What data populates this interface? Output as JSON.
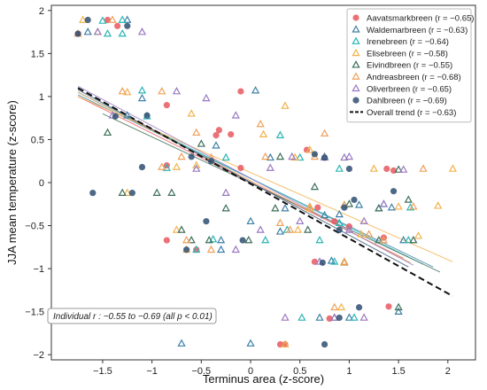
{
  "chart_data": {
    "type": "scatter",
    "title": "",
    "xlabel": "Terminus area  (z-score)",
    "ylabel": "JJA mean temperature  (z-score)",
    "xlim": [
      -2.02,
      2.28
    ],
    "ylim": [
      -2.06,
      2.06
    ],
    "xticks": [
      -1.5,
      -1,
      -0.5,
      0,
      0.5,
      1,
      1.5,
      2
    ],
    "xtick_labels": [
      "−1.5",
      "−1",
      "−0.5",
      "0",
      "0.5",
      "1",
      "1.5",
      "2"
    ],
    "yticks": [
      -2,
      -1.5,
      -1,
      -0.5,
      0,
      0.5,
      1,
      1.5,
      2
    ],
    "ytick_labels": [
      "−2",
      "−1.5",
      "−1",
      "−0.5",
      "0",
      "0.5",
      "1",
      "1.5",
      "2"
    ],
    "grid": false,
    "legend_position": "top-right",
    "annotation": "Individual r :  −0.55  to  −0.69   (all  p < 0.01)",
    "series": [
      {
        "name": "Aavatsmarkbreen",
        "r_label": "(r = −0.65)",
        "marker": "circle",
        "color": "#e8585f",
        "points": [
          [
            -1.75,
            1.73
          ],
          [
            -1.45,
            1.89
          ],
          [
            -1.35,
            1.82
          ],
          [
            -0.85,
            0.9
          ],
          [
            -0.85,
            0.2
          ],
          [
            -0.32,
            0.61
          ],
          [
            -0.35,
            0.55
          ],
          [
            -0.2,
            0.56
          ],
          [
            -0.1,
            0.17
          ],
          [
            -0.1,
            1.06
          ],
          [
            -0.85,
            -0.67
          ],
          [
            -0.55,
            -0.78
          ],
          [
            0.3,
            -1.88
          ],
          [
            0.35,
            -1.88
          ],
          [
            0.68,
            -0.29
          ],
          [
            0.65,
            -0.92
          ],
          [
            0.85,
            -0.45
          ],
          [
            1.0,
            -0.51
          ],
          [
            1.35,
            -0.64
          ],
          [
            0.8,
            -1.58
          ],
          [
            1.38,
            0.16
          ],
          [
            1.45,
            0.14
          ],
          [
            0.57,
            0.38
          ],
          [
            1.4,
            -1.44
          ]
        ]
      },
      {
        "name": "Waldemarbreen",
        "r_label": "(r = −0.63)",
        "marker": "triangle",
        "color": "#3e7fa6",
        "points": [
          [
            -1.65,
            1.75
          ],
          [
            -1.25,
            1.89
          ],
          [
            -1.25,
            0.78
          ],
          [
            -1.1,
            0.98
          ],
          [
            -0.35,
            0.43
          ],
          [
            0.05,
            1.07
          ],
          [
            -0.3,
            -0.78
          ],
          [
            -0.3,
            -0.67
          ],
          [
            0.2,
            0.29
          ],
          [
            0.3,
            -0.57
          ],
          [
            -0.7,
            -1.87
          ],
          [
            0.0,
            -1.87
          ],
          [
            0.75,
            -0.38
          ],
          [
            0.82,
            -0.91
          ],
          [
            0.9,
            -0.37
          ],
          [
            1.1,
            -0.26
          ],
          [
            1.3,
            -0.3
          ],
          [
            1.43,
            -0.29
          ],
          [
            1.55,
            -0.67
          ],
          [
            0.35,
            -0.3
          ],
          [
            0.0,
            -0.45
          ],
          [
            1.5,
            -1.5
          ],
          [
            0.7,
            -1.57
          ],
          [
            1.0,
            -1.57
          ]
        ]
      },
      {
        "name": "Irenebreen",
        "r_label": "(r = −0.64)",
        "marker": "triangle",
        "color": "#2ab5b5",
        "points": [
          [
            -1.5,
            1.88
          ],
          [
            -1.3,
            1.89
          ],
          [
            -1.45,
            1.73
          ],
          [
            -1.3,
            1.73
          ],
          [
            -1.1,
            1.07
          ],
          [
            -1.05,
            0.77
          ],
          [
            -0.85,
            0.17
          ],
          [
            -0.38,
            -0.66
          ],
          [
            -0.55,
            -0.78
          ],
          [
            -0.25,
            0.29
          ],
          [
            0.15,
            -0.67
          ],
          [
            0.37,
            -0.55
          ],
          [
            0.5,
            0.29
          ],
          [
            0.9,
            0.16
          ],
          [
            0.95,
            -0.26
          ],
          [
            1.35,
            -0.25
          ],
          [
            1.62,
            -0.29
          ],
          [
            0.9,
            -0.47
          ],
          [
            0.52,
            -1.57
          ],
          [
            1.05,
            -1.57
          ],
          [
            0.7,
            -0.67
          ],
          [
            0.3,
            0.55
          ],
          [
            0.85,
            -0.92
          ],
          [
            1.6,
            -0.67
          ]
        ]
      },
      {
        "name": "Elisebreen",
        "r_label": "(r = −0.58)",
        "marker": "triangle",
        "color": "#f2b24a",
        "points": [
          [
            -1.7,
            1.89
          ],
          [
            -1.55,
            1.75
          ],
          [
            -1.25,
            1.05
          ],
          [
            -1.25,
            -0.12
          ],
          [
            -0.75,
            0.18
          ],
          [
            -0.55,
            0.2
          ],
          [
            -0.6,
            0.8
          ],
          [
            -0.75,
            -0.55
          ],
          [
            -0.65,
            -0.78
          ],
          [
            0.35,
            -1.88
          ],
          [
            0.13,
            0.56
          ],
          [
            0.35,
            0.89
          ],
          [
            0.45,
            0.29
          ],
          [
            0.6,
            0.38
          ],
          [
            0.6,
            -0.3
          ],
          [
            1.12,
            -0.6
          ],
          [
            1.25,
            0.16
          ],
          [
            1.5,
            -0.28
          ],
          [
            1.7,
            -0.62
          ],
          [
            1.9,
            -0.27
          ],
          [
            2.05,
            0.16
          ],
          [
            0.95,
            -0.92
          ],
          [
            0.92,
            -1.45
          ],
          [
            0.48,
            -0.55
          ]
        ]
      },
      {
        "name": "Eivindbreen",
        "r_label": "(r = −0.55)",
        "marker": "triangle",
        "color": "#3c6e58",
        "points": [
          [
            -1.45,
            0.58
          ],
          [
            -1.3,
            -0.12
          ],
          [
            -0.8,
            -0.12
          ],
          [
            -0.95,
            -0.12
          ],
          [
            -0.7,
            -0.55
          ],
          [
            -0.5,
            0.45
          ],
          [
            -0.42,
            -0.67
          ],
          [
            -0.6,
            -0.67
          ],
          [
            -0.25,
            -0.3
          ],
          [
            -0.02,
            -0.67
          ],
          [
            0.25,
            -0.3
          ],
          [
            0.3,
            0.3
          ],
          [
            0.65,
            -0.05
          ],
          [
            0.75,
            0.3
          ],
          [
            1.0,
            -0.25
          ],
          [
            1.3,
            -0.3
          ],
          [
            1.65,
            -0.67
          ],
          [
            1.5,
            0.15
          ],
          [
            1.6,
            -0.2
          ],
          [
            0.85,
            -1.57
          ],
          [
            1.5,
            -1.45
          ],
          [
            1.3,
            -0.67
          ],
          [
            0.95,
            -0.93
          ],
          [
            0.58,
            -0.55
          ]
        ]
      },
      {
        "name": "Andreasbreen",
        "r_label": "(r = −0.68)",
        "marker": "triangle",
        "color": "#f0a05a",
        "points": [
          [
            -1.75,
            1.73
          ],
          [
            -1.4,
            1.89
          ],
          [
            -1.3,
            1.06
          ],
          [
            -0.9,
            0.18
          ],
          [
            -0.9,
            1.06
          ],
          [
            -0.55,
            0.58
          ],
          [
            -0.7,
            0.3
          ],
          [
            -0.65,
            -0.67
          ],
          [
            -0.4,
            -0.78
          ],
          [
            -0.4,
            0.29
          ],
          [
            0.1,
            0.68
          ],
          [
            0.15,
            0.3
          ],
          [
            0.4,
            -0.55
          ],
          [
            0.65,
            0.3
          ],
          [
            0.75,
            0.57
          ],
          [
            0.95,
            -0.26
          ],
          [
            1.2,
            -0.6
          ],
          [
            1.35,
            -0.67
          ],
          [
            1.75,
            0.16
          ],
          [
            1.65,
            -0.28
          ],
          [
            0.6,
            -0.28
          ],
          [
            0.3,
            -0.47
          ],
          [
            0.85,
            -1.45
          ],
          [
            0.95,
            -0.93
          ]
        ]
      },
      {
        "name": "Oliverbreen",
        "r_label": "(r = −0.65)",
        "marker": "triangle",
        "color": "#9a79c2",
        "points": [
          [
            -1.55,
            1.75
          ],
          [
            -1.1,
            1.75
          ],
          [
            -1.4,
            0.78
          ],
          [
            -0.75,
            1.06
          ],
          [
            -0.45,
            0.98
          ],
          [
            -0.55,
            0.16
          ],
          [
            -0.25,
            -0.12
          ],
          [
            -0.15,
            0.78
          ],
          [
            -0.15,
            -0.78
          ],
          [
            0.2,
            0.17
          ],
          [
            0.42,
            0.3
          ],
          [
            0.5,
            -0.45
          ],
          [
            0.1,
            -0.55
          ],
          [
            0.95,
            0.29
          ],
          [
            1.0,
            -0.55
          ],
          [
            1.15,
            -0.45
          ],
          [
            1.35,
            -0.25
          ],
          [
            1.55,
            0.15
          ],
          [
            0.75,
            0.29
          ],
          [
            0.85,
            -1.57
          ],
          [
            1.15,
            -1.57
          ],
          [
            1.0,
            0.3
          ],
          [
            0.7,
            -0.92
          ],
          [
            0.35,
            -1.57
          ]
        ]
      },
      {
        "name": "Dahlbreen",
        "r_label": "(r = −0.69)",
        "marker": "circle",
        "color": "#2f4f73",
        "points": [
          [
            -1.75,
            1.73
          ],
          [
            -1.65,
            1.89
          ],
          [
            -1.25,
            1.82
          ],
          [
            -1.37,
            0.77
          ],
          [
            -1.05,
            0.78
          ],
          [
            -1.1,
            0.18
          ],
          [
            -1.2,
            -0.12
          ],
          [
            -1.6,
            -0.12
          ],
          [
            -0.6,
            0.3
          ],
          [
            -0.4,
            0.25
          ],
          [
            -0.45,
            -0.45
          ],
          [
            -0.65,
            -0.78
          ],
          [
            -0.08,
            -0.67
          ],
          [
            0.65,
            0.33
          ],
          [
            0.75,
            0.29
          ],
          [
            0.9,
            -0.55
          ],
          [
            0.95,
            -0.29
          ],
          [
            1.05,
            -0.2
          ],
          [
            1.0,
            0.16
          ],
          [
            1.45,
            -0.1
          ],
          [
            0.73,
            -0.93
          ],
          [
            0.75,
            -1.88
          ],
          [
            1.1,
            -1.45
          ],
          [
            0.9,
            -1.57
          ]
        ]
      }
    ],
    "fit_lines": [
      {
        "series": "Aavatsmarkbreen",
        "color": "#e8585f",
        "x": [
          -1.75,
          1.55
        ],
        "y": [
          1.0,
          -0.88
        ]
      },
      {
        "series": "Waldemarbreen",
        "color": "#3e7fa6",
        "x": [
          -1.75,
          1.85
        ],
        "y": [
          1.02,
          -0.98
        ]
      },
      {
        "series": "Irenebreen",
        "color": "#2ab5b5",
        "x": [
          -1.75,
          1.75
        ],
        "y": [
          1.05,
          -0.95
        ]
      },
      {
        "series": "Elisebreen",
        "color": "#f2b24a",
        "x": [
          -1.75,
          2.05
        ],
        "y": [
          1.0,
          -0.92
        ]
      },
      {
        "series": "Eivindbreen",
        "color": "#3c6e58",
        "x": [
          -1.5,
          1.92
        ],
        "y": [
          0.8,
          -1.04
        ]
      },
      {
        "series": "Andreasbreen",
        "color": "#f0a05a",
        "x": [
          -1.75,
          1.62
        ],
        "y": [
          1.05,
          -0.93
        ]
      },
      {
        "series": "Oliverbreen",
        "color": "#9a79c2",
        "x": [
          -1.75,
          1.65
        ],
        "y": [
          1.12,
          -0.96
        ]
      },
      {
        "series": "Dahlbreen",
        "color": "#2f4f73",
        "x": [
          -1.75,
          1.6
        ],
        "y": [
          1.08,
          -0.98
        ]
      }
    ],
    "overall_trend": {
      "name": "Overall trend",
      "r_label": "(r = −0.63)",
      "style": "dashed",
      "color": "#111111",
      "x": [
        -1.75,
        2.05
      ],
      "y": [
        1.1,
        -1.32
      ]
    }
  }
}
